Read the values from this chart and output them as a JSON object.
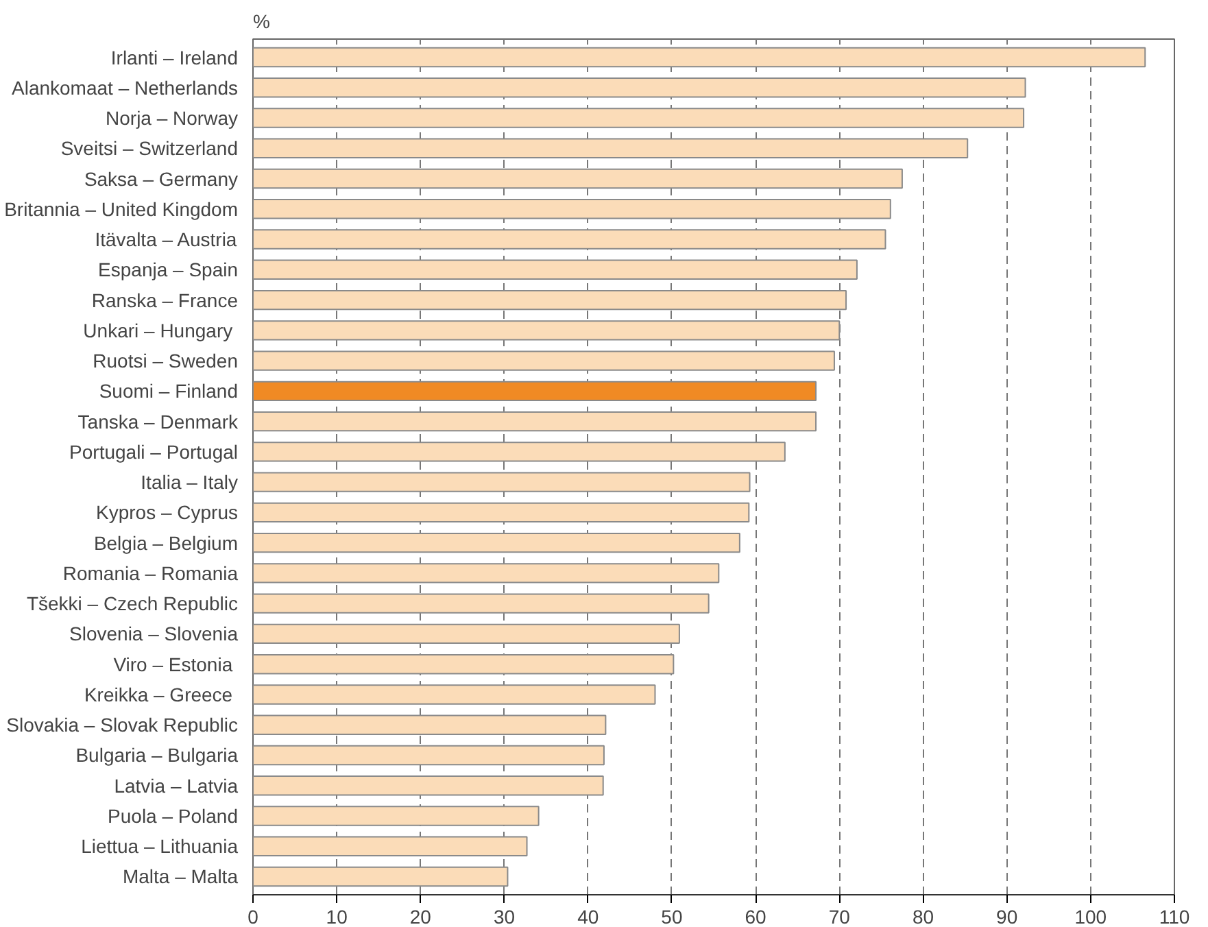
{
  "chart_data": {
    "type": "bar",
    "orientation": "horizontal",
    "xlabel": "%",
    "categories": [
      "Irlanti – Ireland",
      "Alankomaat – Netherlands",
      "Norja – Norway",
      "Sveitsi – Switzerland",
      "Saksa – Germany",
      "Britannia – United Kingdom",
      "Itävalta – Austria",
      "Espanja – Spain",
      "Ranska – France",
      "Unkari  – Hungary",
      "Ruotsi – Sweden",
      "Suomi – Finland",
      "Tanska – Denmark",
      "Portugali – Portugal",
      "Italia – Italy",
      "Kypros – Cyprus",
      "Belgia – Belgium",
      "Romania – Romania",
      "Tšekki – Czech Republic",
      "Slovenia – Slovenia",
      "Viro –  Estonia",
      "Kreikka  – Greece",
      "Slovakia – Slovak Republic",
      "Bulgaria – Bulgaria",
      "Latvia – Latvia",
      "Puola – Poland",
      "Liettua – Lithuania",
      "Malta – Malta"
    ],
    "values": [
      106.5,
      92.2,
      92.0,
      85.3,
      77.5,
      76.1,
      75.5,
      72.1,
      70.8,
      70.0,
      69.4,
      67.2,
      67.2,
      63.5,
      59.3,
      59.2,
      58.1,
      55.6,
      54.4,
      50.9,
      50.2,
      48.0,
      42.1,
      41.9,
      41.8,
      34.1,
      32.7,
      30.4
    ],
    "colors": [
      "#fbdcb8",
      "#fbdcb8",
      "#fbdcb8",
      "#fbdcb8",
      "#fbdcb8",
      "#fbdcb8",
      "#fbdcb8",
      "#fbdcb8",
      "#fbdcb8",
      "#fbdcb8",
      "#fbdcb8",
      "#f08a24",
      "#fbdcb8",
      "#fbdcb8",
      "#fbdcb8",
      "#fbdcb8",
      "#fbdcb8",
      "#fbdcb8",
      "#fbdcb8",
      "#fbdcb8",
      "#fbdcb8",
      "#fbdcb8",
      "#fbdcb8",
      "#fbdcb8",
      "#fbdcb8",
      "#fbdcb8",
      "#fbdcb8",
      "#fbdcb8"
    ],
    "xlim": [
      0,
      110
    ],
    "xticks": [
      0,
      10,
      20,
      30,
      40,
      50,
      60,
      70,
      80,
      90,
      100,
      110
    ],
    "grid": "x"
  }
}
